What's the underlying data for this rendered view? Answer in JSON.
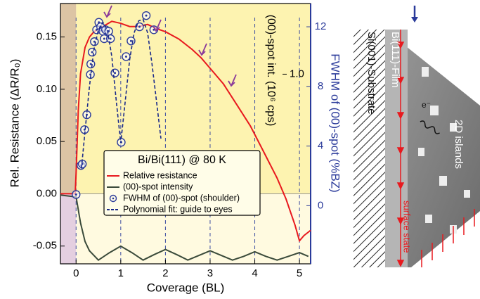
{
  "chart_data": {
    "type": "line",
    "xlabel": "Coverage (BL)",
    "ylabel": "Rel. Resistance (ΔR/R₀)",
    "y2label": "FWHM of (00)-spot (%BZ)",
    "y3label": "(00)-spot int. (10⁶ cps)",
    "legend_title": "Bi/Bi(111) @ 80 K",
    "xlim": [
      -0.35,
      5.25
    ],
    "xticks": [
      0,
      1,
      2,
      3,
      4,
      5
    ],
    "ylim": [
      -0.067,
      0.182
    ],
    "yticks": [
      {
        "value": -0.05,
        "label": "-0.05"
      },
      {
        "value": 0,
        "label": "0.00"
      },
      {
        "value": 0.05,
        "label": "0.05"
      },
      {
        "value": 0.1,
        "label": "0.10"
      },
      {
        "value": 0.15,
        "label": "0.15"
      }
    ],
    "y2lim": [
      -3.9,
      13.56
    ],
    "y2ticks": [
      0,
      4,
      8,
      12
    ],
    "y3lim": [
      -0.02,
      1.38
    ],
    "y3ticks": [
      {
        "value": 1,
        "label": "1.0"
      }
    ],
    "grid": true,
    "series": [
      {
        "name": "Relative resistance",
        "color": "#e8191e",
        "style": "line",
        "axis": "y",
        "x": [
          -0.35,
          -0.02,
          0,
          0.05,
          0.1,
          0.2,
          0.3,
          0.4,
          0.6,
          0.8,
          1.0,
          1.2,
          1.4,
          1.6,
          1.8,
          2.0,
          2.3,
          2.6,
          2.8,
          3.0,
          3.3,
          3.6,
          3.9,
          4.2,
          4.5,
          4.7,
          4.9,
          5.0,
          5.1,
          5.25
        ],
        "values": [
          0,
          0,
          0.02,
          0.08,
          0.115,
          0.14,
          0.15,
          0.155,
          0.16,
          0.165,
          0.163,
          0.16,
          0.16,
          0.162,
          0.158,
          0.155,
          0.148,
          0.138,
          0.13,
          0.12,
          0.105,
          0.085,
          0.065,
          0.04,
          0.015,
          -0.005,
          -0.03,
          -0.045,
          -0.04,
          -0.035
        ]
      },
      {
        "name": "(00)-spot intensity",
        "color": "#3a4a3a",
        "style": "line",
        "axis": "y3",
        "x": [
          -0.35,
          0,
          0.1,
          0.2,
          0.3,
          0.5,
          0.75,
          1,
          1.25,
          1.5,
          1.75,
          2,
          2.25,
          2.5,
          2.75,
          3,
          3.25,
          3.5,
          3.75,
          4,
          4.25,
          4.5,
          4.75,
          5,
          5.2
        ],
        "values": [
          0.35,
          0.34,
          0.2,
          0.1,
          0.05,
          0.0,
          0.04,
          0.075,
          0.04,
          0.0,
          0.03,
          0.057,
          0.03,
          0.0,
          0.025,
          0.05,
          0.025,
          0.0,
          0.02,
          0.045,
          0.02,
          0.0,
          0.02,
          0.04,
          0.02
        ]
      },
      {
        "name": "FWHM of (00)-spot (shoulder)",
        "color": "#2a3a9a",
        "style": "markers",
        "axis": "y2",
        "x": [
          0,
          0.11,
          0.14,
          0.19,
          0.24,
          0.32,
          0.33,
          0.36,
          0.41,
          0.46,
          0.51,
          0.55,
          0.6,
          0.63,
          0.66,
          0.73,
          0.77,
          0.87,
          1.01,
          1.12,
          1.23,
          1.42,
          1.57,
          1.74
        ],
        "values": [
          0.75,
          2.7,
          2.8,
          5.1,
          6.1,
          8.8,
          9.5,
          10.3,
          11.0,
          11.8,
          12.3,
          12.0,
          11.7,
          11.2,
          11.8,
          11.7,
          11.2,
          8.9,
          4.25,
          10.0,
          11.05,
          12.0,
          12.75,
          11.8
        ]
      },
      {
        "name": "Polynomial fit: guide to eyes",
        "color": "#1a2a8a",
        "style": "dashed",
        "axis": "y2",
        "x": [
          0.12,
          0.2,
          0.3,
          0.4,
          0.5,
          0.6,
          0.7,
          0.8,
          0.9,
          1.0,
          1.1,
          1.2,
          1.3,
          1.4,
          1.5,
          1.6,
          1.7,
          1.8,
          1.9
        ],
        "values": [
          2.5,
          5,
          8,
          10.5,
          11.8,
          12.3,
          11.8,
          10,
          7,
          4.2,
          7,
          9.8,
          11.6,
          12.4,
          12.5,
          11.6,
          9.5,
          7,
          4.5
        ]
      }
    ]
  },
  "diagram": {
    "substrate": "Si(001)-Substrate",
    "film": "Bi(111)-Film",
    "islands": "2D islands",
    "surface_state": "surface state",
    "electron": "e⁻"
  }
}
